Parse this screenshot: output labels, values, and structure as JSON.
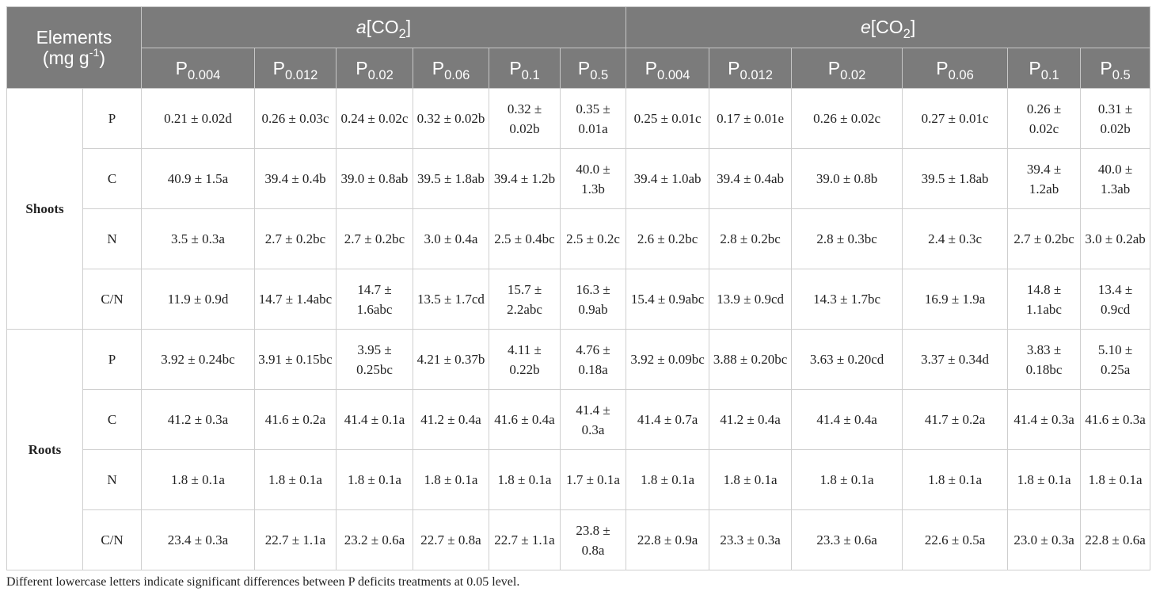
{
  "header": {
    "elements_label": "Elements",
    "units_base": "(mg g",
    "units_exp": "-1",
    "units_close": ")",
    "groups": [
      {
        "italic": "a",
        "pre": "[CO",
        "sub": "2",
        "post": "]"
      },
      {
        "italic": "e",
        "pre": "[CO",
        "sub": "2",
        "post": "]"
      }
    ],
    "treatments": [
      {
        "base": "P",
        "sub": "0.004"
      },
      {
        "base": "P",
        "sub": "0.012"
      },
      {
        "base": "P",
        "sub": "0.02"
      },
      {
        "base": "P",
        "sub": "0.06"
      },
      {
        "base": "P",
        "sub": "0.1"
      },
      {
        "base": "P",
        "sub": "0.5"
      },
      {
        "base": "P",
        "sub": "0.004"
      },
      {
        "base": "P",
        "sub": "0.012"
      },
      {
        "base": "P",
        "sub": "0.02"
      },
      {
        "base": "P",
        "sub": "0.06"
      },
      {
        "base": "P",
        "sub": "0.1"
      },
      {
        "base": "P",
        "sub": "0.5"
      }
    ]
  },
  "groups": [
    {
      "name": "Shoots",
      "rows": [
        {
          "element": "P",
          "values": [
            "0.21 ± 0.02d",
            "0.26 ± 0.03c",
            "0.24 ± 0.02c",
            "0.32 ± 0.02b",
            "0.32 ± 0.02b",
            "0.35 ± 0.01a",
            "0.25 ± 0.01c",
            "0.17 ± 0.01e",
            "0.26 ± 0.02c",
            "0.27 ± 0.01c",
            "0.26 ± 0.02c",
            "0.31 ± 0.02b"
          ]
        },
        {
          "element": "C",
          "values": [
            "40.9 ± 1.5a",
            "39.4 ± 0.4b",
            "39.0 ± 0.8ab",
            "39.5 ± 1.8ab",
            "39.4 ± 1.2b",
            "40.0 ± 1.3b",
            "39.4 ± 1.0ab",
            "39.4 ± 0.4ab",
            "39.0 ± 0.8b",
            "39.5 ± 1.8ab",
            "39.4 ± 1.2ab",
            "40.0 ± 1.3ab"
          ]
        },
        {
          "element": "N",
          "values": [
            "3.5 ± 0.3a",
            "2.7 ± 0.2bc",
            "2.7 ± 0.2bc",
            "3.0 ± 0.4a",
            "2.5 ± 0.4bc",
            "2.5 ± 0.2c",
            "2.6 ± 0.2bc",
            "2.8 ± 0.2bc",
            "2.8 ± 0.3bc",
            "2.4 ± 0.3c",
            "2.7 ± 0.2bc",
            "3.0 ± 0.2ab"
          ]
        },
        {
          "element": "C/N",
          "values": [
            "11.9 ± 0.9d",
            "14.7 ± 1.4abc",
            "14.7 ± 1.6abc",
            "13.5 ± 1.7cd",
            "15.7 ± 2.2abc",
            "16.3 ± 0.9ab",
            "15.4 ± 0.9abc",
            "13.9 ± 0.9cd",
            "14.3 ± 1.7bc",
            "16.9 ± 1.9a",
            "14.8 ± 1.1abc",
            "13.4 ± 0.9cd"
          ]
        }
      ]
    },
    {
      "name": "Roots",
      "rows": [
        {
          "element": "P",
          "values": [
            "3.92 ± 0.24bc",
            "3.91 ± 0.15bc",
            "3.95 ± 0.25bc",
            "4.21 ± 0.37b",
            "4.11 ± 0.22b",
            "4.76 ± 0.18a",
            "3.92 ± 0.09bc",
            "3.88 ± 0.20bc",
            "3.63 ± 0.20cd",
            "3.37 ± 0.34d",
            "3.83 ± 0.18bc",
            "5.10 ± 0.25a"
          ]
        },
        {
          "element": "C",
          "values": [
            "41.2 ± 0.3a",
            "41.6 ± 0.2a",
            "41.4 ± 0.1a",
            "41.2 ± 0.4a",
            "41.6 ± 0.4a",
            "41.4 ± 0.3a",
            "41.4 ± 0.7a",
            "41.2 ± 0.4a",
            "41.4 ± 0.4a",
            "41.7 ± 0.2a",
            "41.4 ± 0.3a",
            "41.6 ± 0.3a"
          ]
        },
        {
          "element": "N",
          "values": [
            "1.8 ± 0.1a",
            "1.8 ± 0.1a",
            "1.8 ± 0.1a",
            "1.8 ± 0.1a",
            "1.8 ± 0.1a",
            "1.7 ± 0.1a",
            "1.8 ± 0.1a",
            "1.8 ± 0.1a",
            "1.8 ± 0.1a",
            "1.8 ± 0.1a",
            "1.8 ± 0.1a",
            "1.8 ± 0.1a"
          ]
        },
        {
          "element": "C/N",
          "values": [
            "23.4 ± 0.3a",
            "22.7 ± 1.1a",
            "23.2 ± 0.6a",
            "22.7 ± 0.8a",
            "22.7 ± 1.1a",
            "23.8 ± 0.8a",
            "22.8 ± 0.9a",
            "23.3 ± 0.3a",
            "23.3 ± 0.6a",
            "22.6 ± 0.5a",
            "23.0 ± 0.3a",
            "22.8 ± 0.6a"
          ]
        }
      ]
    }
  ],
  "footnote": "Different lowercase letters indicate significant differences between P deficits treatments at 0.05 level."
}
